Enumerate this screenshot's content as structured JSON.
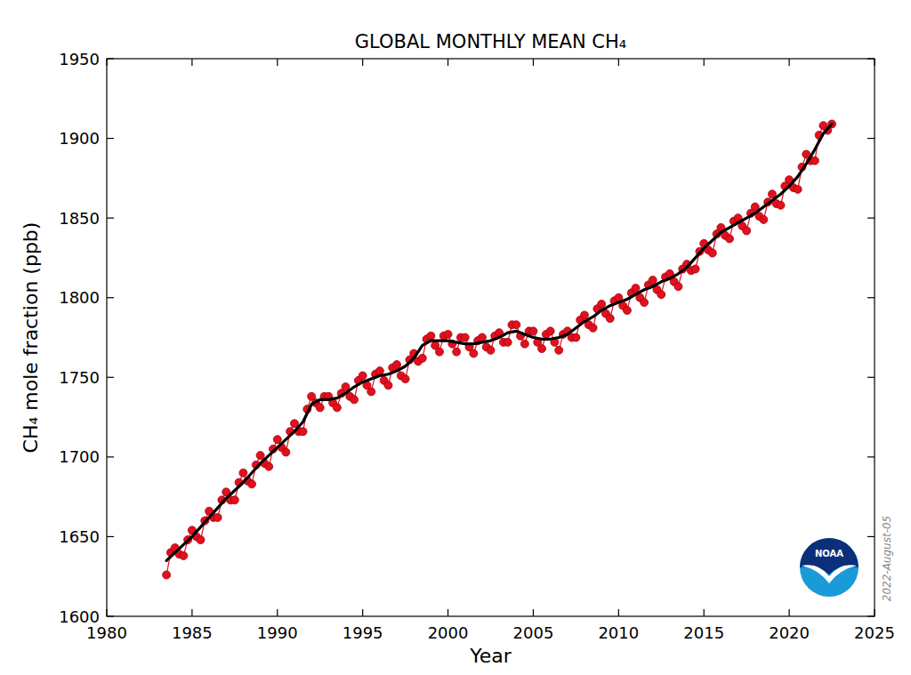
{
  "chart_data": {
    "type": "line",
    "title": "GLOBAL MONTHLY MEAN CH₄",
    "x_label": "Year",
    "y_label": "CH₄ mole fraction (ppb)",
    "annotations": [
      "2022-August-05",
      "NOAA"
    ],
    "xlim": [
      1980,
      2025
    ],
    "xticks": [
      1980,
      1985,
      1990,
      1995,
      2000,
      2005,
      2010,
      2015,
      2020,
      2025
    ],
    "ylim": [
      1600,
      1950
    ],
    "yticks": [
      1600,
      1650,
      1700,
      1750,
      1800,
      1850,
      1900,
      1950
    ],
    "grid": false,
    "series": [
      {
        "color": "#e3101c",
        "marker": "circle",
        "line_style": "solid",
        "x": [
          1983.5,
          1983.75,
          1984,
          1984.25,
          1984.5,
          1984.75,
          1985,
          1985.25,
          1985.5,
          1985.75,
          1986,
          1986.25,
          1986.5,
          1986.75,
          1987,
          1987.25,
          1987.5,
          1987.75,
          1988,
          1988.25,
          1988.5,
          1988.75,
          1989,
          1989.25,
          1989.5,
          1989.75,
          1990,
          1990.25,
          1990.5,
          1990.75,
          1991,
          1991.25,
          1991.5,
          1991.75,
          1992,
          1992.25,
          1992.5,
          1992.75,
          1993,
          1993.25,
          1993.5,
          1993.75,
          1994,
          1994.25,
          1994.5,
          1994.75,
          1995,
          1995.25,
          1995.5,
          1995.75,
          1996,
          1996.25,
          1996.5,
          1996.75,
          1997,
          1997.25,
          1997.5,
          1997.75,
          1998,
          1998.25,
          1998.5,
          1998.75,
          1999,
          1999.25,
          1999.5,
          1999.75,
          2000,
          2000.25,
          2000.5,
          2000.75,
          2001,
          2001.25,
          2001.5,
          2001.75,
          2002,
          2002.25,
          2002.5,
          2002.75,
          2003,
          2003.25,
          2003.5,
          2003.75,
          2004,
          2004.25,
          2004.5,
          2004.75,
          2005,
          2005.25,
          2005.5,
          2005.75,
          2006,
          2006.25,
          2006.5,
          2006.75,
          2007,
          2007.25,
          2007.5,
          2007.75,
          2008,
          2008.25,
          2008.5,
          2008.75,
          2009,
          2009.25,
          2009.5,
          2009.75,
          2010,
          2010.25,
          2010.5,
          2010.75,
          2011,
          2011.25,
          2011.5,
          2011.75,
          2012,
          2012.25,
          2012.5,
          2012.75,
          2013,
          2013.25,
          2013.5,
          2013.75,
          2014,
          2014.25,
          2014.5,
          2014.75,
          2015,
          2015.25,
          2015.5,
          2015.75,
          2016,
          2016.25,
          2016.5,
          2016.75,
          2017,
          2017.25,
          2017.5,
          2017.75,
          2018,
          2018.25,
          2018.5,
          2018.75,
          2019,
          2019.25,
          2019.5,
          2019.75,
          2020,
          2020.25,
          2020.5,
          2020.75,
          2021,
          2021.25,
          2021.5,
          2021.75,
          2022,
          2022.25,
          2022.5
        ],
        "values": [
          1626,
          1640,
          1643,
          1639,
          1638,
          1648,
          1654,
          1650,
          1648,
          1660,
          1666,
          1662,
          1662,
          1673,
          1678,
          1673,
          1673,
          1684,
          1690,
          1685,
          1683,
          1695,
          1701,
          1696,
          1694,
          1705,
          1711,
          1706,
          1703,
          1716,
          1721,
          1716,
          1716,
          1730,
          1738,
          1734,
          1731,
          1738,
          1738,
          1734,
          1731,
          1740,
          1744,
          1738,
          1736,
          1748,
          1751,
          1745,
          1741,
          1752,
          1754,
          1748,
          1745,
          1756,
          1758,
          1751,
          1749,
          1761,
          1765,
          1760,
          1762,
          1774,
          1776,
          1770,
          1766,
          1776,
          1777,
          1771,
          1766,
          1775,
          1775,
          1769,
          1765,
          1773,
          1775,
          1769,
          1767,
          1776,
          1778,
          1772,
          1772,
          1783,
          1783,
          1776,
          1771,
          1779,
          1779,
          1772,
          1768,
          1777,
          1779,
          1772,
          1767,
          1777,
          1779,
          1775,
          1775,
          1786,
          1789,
          1783,
          1781,
          1793,
          1796,
          1790,
          1787,
          1798,
          1800,
          1795,
          1792,
          1803,
          1806,
          1800,
          1797,
          1808,
          1811,
          1805,
          1802,
          1813,
          1815,
          1810,
          1807,
          1818,
          1821,
          1817,
          1818,
          1829,
          1834,
          1830,
          1828,
          1840,
          1844,
          1839,
          1837,
          1848,
          1850,
          1845,
          1842,
          1853,
          1857,
          1851,
          1849,
          1860,
          1865,
          1859,
          1858,
          1870,
          1874,
          1869,
          1868,
          1882,
          1890,
          1886,
          1886,
          1902,
          1908,
          1905,
          1909
        ]
      },
      {
        "color": "#000000",
        "marker": "none",
        "line_style": "solid",
        "x": [
          1983.5,
          1984,
          1984.5,
          1985,
          1985.5,
          1986,
          1986.5,
          1987,
          1987.5,
          1988,
          1988.5,
          1989,
          1989.5,
          1990,
          1990.5,
          1991,
          1991.5,
          1992,
          1992.5,
          1993,
          1993.5,
          1994,
          1994.5,
          1995,
          1995.5,
          1996,
          1996.5,
          1997,
          1997.5,
          1998,
          1998.5,
          1999,
          1999.5,
          2000,
          2000.5,
          2001,
          2001.5,
          2002,
          2002.5,
          2003,
          2003.5,
          2004,
          2004.5,
          2005,
          2005.5,
          2006,
          2006.5,
          2007,
          2007.5,
          2008,
          2008.5,
          2009,
          2009.5,
          2010,
          2010.5,
          2011,
          2011.5,
          2012,
          2012.5,
          2013,
          2013.5,
          2014,
          2014.5,
          2015,
          2015.5,
          2016,
          2016.5,
          2017,
          2017.5,
          2018,
          2018.5,
          2019,
          2019.5,
          2020,
          2020.5,
          2021,
          2021.5,
          2022,
          2022.5
        ],
        "values": [
          1635,
          1640,
          1645,
          1650,
          1656,
          1662,
          1668,
          1674,
          1679,
          1684,
          1690,
          1696,
          1701,
          1706,
          1711,
          1716,
          1722,
          1733,
          1736,
          1736,
          1737,
          1740,
          1744,
          1747,
          1749,
          1751,
          1752,
          1754,
          1757,
          1762,
          1770,
          1773,
          1773,
          1773,
          1772,
          1771,
          1771,
          1772,
          1773,
          1775,
          1778,
          1779,
          1777,
          1775,
          1774,
          1774,
          1775,
          1777,
          1781,
          1785,
          1788,
          1792,
          1795,
          1797,
          1799,
          1802,
          1805,
          1807,
          1810,
          1812,
          1815,
          1819,
          1825,
          1831,
          1836,
          1841,
          1844,
          1847,
          1850,
          1853,
          1857,
          1861,
          1865,
          1870,
          1876,
          1884,
          1893,
          1903,
          1909
        ]
      }
    ]
  }
}
